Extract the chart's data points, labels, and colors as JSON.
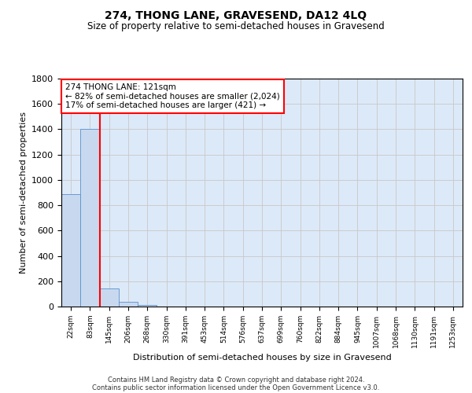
{
  "title": "274, THONG LANE, GRAVESEND, DA12 4LQ",
  "subtitle": "Size of property relative to semi-detached houses in Gravesend",
  "xlabel": "Distribution of semi-detached houses by size in Gravesend",
  "ylabel": "Number of semi-detached properties",
  "bin_labels": [
    "22sqm",
    "83sqm",
    "145sqm",
    "206sqm",
    "268sqm",
    "330sqm",
    "391sqm",
    "453sqm",
    "514sqm",
    "576sqm",
    "637sqm",
    "699sqm",
    "760sqm",
    "822sqm",
    "884sqm",
    "945sqm",
    "1007sqm",
    "1068sqm",
    "1130sqm",
    "1191sqm",
    "1253sqm"
  ],
  "bar_values": [
    890,
    1400,
    145,
    35,
    15,
    0,
    0,
    0,
    0,
    0,
    0,
    0,
    0,
    0,
    0,
    0,
    0,
    0,
    0,
    0,
    0
  ],
  "bar_color": "#c8d9ef",
  "bar_edge_color": "#5a8fcc",
  "grid_color": "#c8c8c8",
  "background_color": "#dce9f8",
  "red_line_bin_index": 2,
  "annotation_text": "274 THONG LANE: 121sqm\n← 82% of semi-detached houses are smaller (2,024)\n17% of semi-detached houses are larger (421) →",
  "annotation_box_color": "white",
  "annotation_box_edge_color": "red",
  "ylim": [
    0,
    1800
  ],
  "yticks": [
    0,
    200,
    400,
    600,
    800,
    1000,
    1200,
    1400,
    1600,
    1800
  ],
  "footer_line1": "Contains HM Land Registry data © Crown copyright and database right 2024.",
  "footer_line2": "Contains public sector information licensed under the Open Government Licence v3.0.",
  "title_fontsize": 10,
  "subtitle_fontsize": 8.5
}
